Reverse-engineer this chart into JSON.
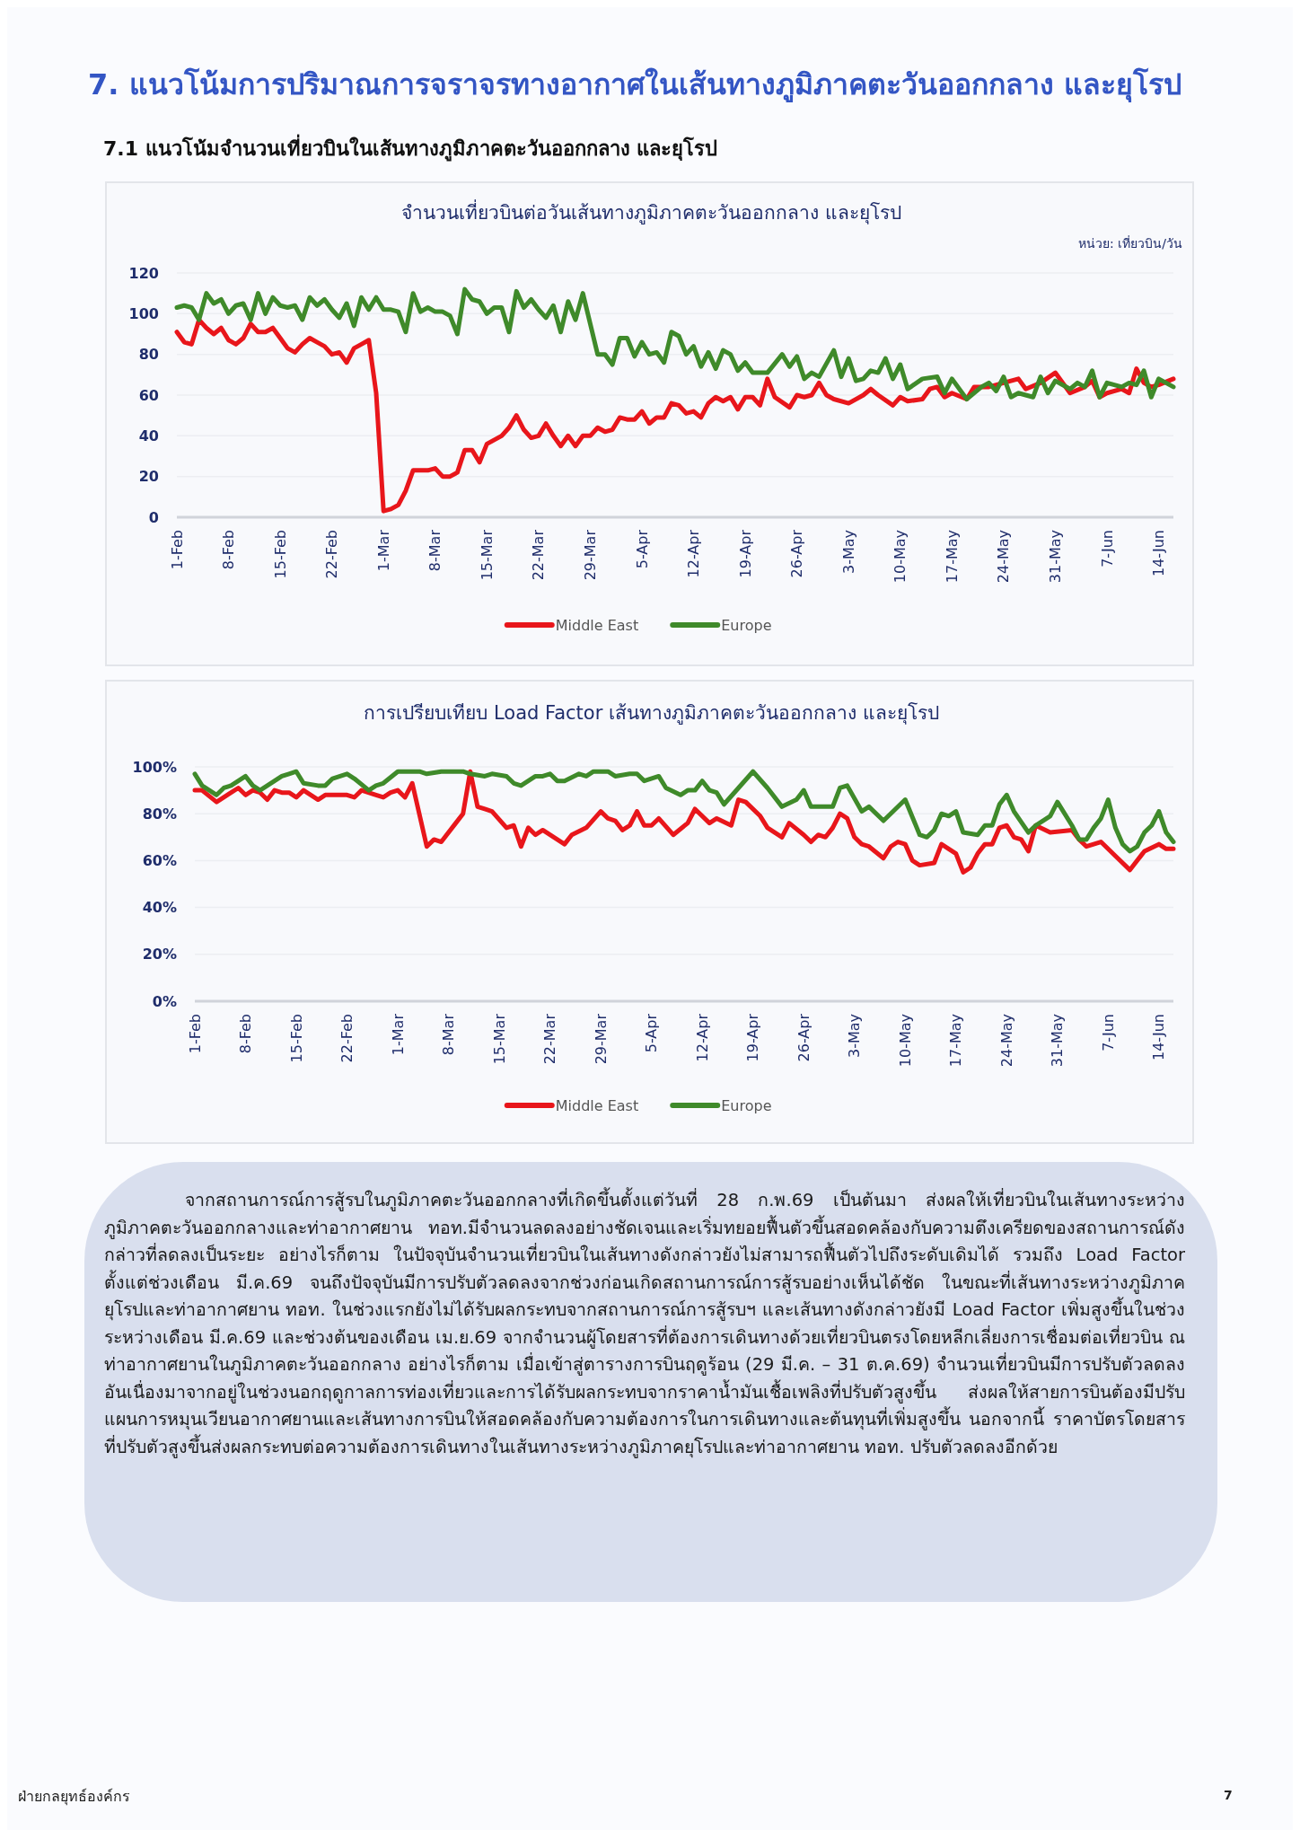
{
  "chart_data": [
    {
      "type": "other",
      "title": "7. แนวโน้มการปริมาณการจราจรทางอากาศในเส้นทางภูมิภาคตะวันออกกลาง และยุโรป",
      "subtitle": "7.1 แนวโน้มจำนวนเที่ยวบินในเส้นทางภูมิภาคตะวันออกกลาง และยุโรป"
    },
    {
      "type": "line",
      "title": "จำนวนเที่ยวบินต่อวันเส้นทางภูมิภาคตะวันออกกลาง และยุโรป",
      "annotations": [
        "หน่วย: เที่ยวบิน/วัน"
      ],
      "xlim": [
        "--02-01",
        "--06-16"
      ],
      "xticks": [
        {
          "value": "--02-01",
          "label": "1-Feb"
        },
        {
          "value": "--02-08",
          "label": "8-Feb"
        },
        {
          "value": "--02-15",
          "label": "15-Feb"
        },
        {
          "value": "--02-22",
          "label": "22-Feb"
        },
        {
          "value": "--03-01",
          "label": "1-Mar"
        },
        {
          "value": "--03-08",
          "label": "8-Mar"
        },
        {
          "value": "--03-15",
          "label": "15-Mar"
        },
        {
          "value": "--03-22",
          "label": "22-Mar"
        },
        {
          "value": "--03-29",
          "label": "29-Mar"
        },
        {
          "value": "--04-05",
          "label": "5-Apr"
        },
        {
          "value": "--04-12",
          "label": "12-Apr"
        },
        {
          "value": "--04-19",
          "label": "19-Apr"
        },
        {
          "value": "--04-26",
          "label": "26-Apr"
        },
        {
          "value": "--05-03",
          "label": "3-May"
        },
        {
          "value": "--05-10",
          "label": "10-May"
        },
        {
          "value": "--05-17",
          "label": "17-May"
        },
        {
          "value": "--05-24",
          "label": "24-May"
        },
        {
          "value": "--05-31",
          "label": "31-May"
        },
        {
          "value": "--06-07",
          "label": "7-Jun"
        },
        {
          "value": "--06-14",
          "label": "14-Jun"
        }
      ],
      "ylim": [
        0,
        120
      ],
      "yticks": [
        0,
        20,
        40,
        60,
        80,
        100,
        120
      ],
      "grid": "y",
      "legend": "bottom",
      "marker": "none",
      "line_style": "solid",
      "series": [
        {
          "name": "Middle East",
          "color": "#e8161b",
          "x": [
            "--02-01",
            "--02-02",
            "--02-03",
            "--02-04",
            "--02-05",
            "--02-06",
            "--02-07",
            "--02-08",
            "--02-09",
            "--02-10",
            "--02-11",
            "--02-12",
            "--02-13",
            "--02-14",
            "--02-15",
            "--02-16",
            "--02-17",
            "--02-18",
            "--02-19",
            "--02-20",
            "--02-21",
            "--02-22",
            "--02-23",
            "--02-24",
            "--02-25",
            "--02-26",
            "--02-27",
            "--02-28",
            "--03-01",
            "--03-02",
            "--03-03",
            "--03-04",
            "--03-05",
            "--03-06",
            "--03-07",
            "--03-08",
            "--03-09",
            "--03-10",
            "--03-11",
            "--03-12",
            "--03-13",
            "--03-14",
            "--03-15",
            "--03-16",
            "--03-17",
            "--03-18",
            "--03-19",
            "--03-20",
            "--03-21",
            "--03-22",
            "--03-23",
            "--03-24",
            "--03-25",
            "--03-26",
            "--03-27",
            "--03-28",
            "--03-29",
            "--03-30",
            "--03-31",
            "--04-01",
            "--04-02",
            "--04-03",
            "--04-04",
            "--04-05",
            "--04-06",
            "--04-07",
            "--04-08",
            "--04-09",
            "--04-10",
            "--04-11",
            "--04-12",
            "--04-13",
            "--04-14",
            "--04-15",
            "--04-16",
            "--04-17",
            "--04-18",
            "--04-19",
            "--04-20",
            "--04-21",
            "--04-22",
            "--04-23",
            "--04-25",
            "--04-26",
            "--04-27",
            "--04-28",
            "--04-29",
            "--04-30",
            "--05-01",
            "--05-03",
            "--05-05",
            "--05-06",
            "--05-07",
            "--05-09",
            "--05-10",
            "--05-11",
            "--05-13",
            "--05-14",
            "--05-15",
            "--05-16",
            "--05-17",
            "--05-19",
            "--05-20",
            "--05-22",
            "--05-24",
            "--05-26",
            "--05-27",
            "--05-29",
            "--05-31",
            "--06-02",
            "--06-04",
            "--06-05",
            "--06-06",
            "--06-07",
            "--06-09",
            "--06-10",
            "--06-11",
            "--06-12",
            "--06-13",
            "--06-14",
            "--06-16"
          ],
          "values": [
            91,
            86,
            85,
            97,
            93,
            90,
            93,
            87,
            85,
            88,
            95,
            91,
            91,
            93,
            88,
            83,
            81,
            85,
            88,
            86,
            84,
            80,
            81,
            76,
            83,
            85,
            87,
            61,
            3,
            4,
            6,
            13,
            23,
            23,
            23,
            24,
            20,
            20,
            22,
            33,
            33,
            27,
            36,
            38,
            40,
            44,
            50,
            43,
            39,
            40,
            46,
            40,
            35,
            40,
            35,
            40,
            40,
            44,
            42,
            43,
            49,
            48,
            48,
            52,
            46,
            49,
            49,
            56,
            55,
            51,
            52,
            49,
            56,
            59,
            57,
            59,
            53,
            59,
            59,
            55,
            68,
            59,
            54,
            60,
            59,
            60,
            66,
            60,
            58,
            56,
            60,
            63,
            60,
            55,
            59,
            57,
            58,
            63,
            64,
            59,
            61,
            58,
            64,
            64,
            66,
            68,
            63,
            66,
            71,
            61,
            64,
            67,
            59,
            61,
            63,
            61,
            73,
            66,
            64,
            65,
            68
          ]
        },
        {
          "name": "Europe",
          "color": "#3f8a2a",
          "x": [
            "--02-01",
            "--02-02",
            "--02-03",
            "--02-04",
            "--02-05",
            "--02-06",
            "--02-07",
            "--02-08",
            "--02-09",
            "--02-10",
            "--02-11",
            "--02-12",
            "--02-13",
            "--02-14",
            "--02-15",
            "--02-16",
            "--02-17",
            "--02-18",
            "--02-19",
            "--02-20",
            "--02-21",
            "--02-22",
            "--02-23",
            "--02-24",
            "--02-25",
            "--02-26",
            "--02-27",
            "--02-28",
            "--03-01",
            "--03-02",
            "--03-03",
            "--03-04",
            "--03-05",
            "--03-06",
            "--03-07",
            "--03-08",
            "--03-09",
            "--03-10",
            "--03-11",
            "--03-12",
            "--03-13",
            "--03-14",
            "--03-15",
            "--03-16",
            "--03-17",
            "--03-18",
            "--03-19",
            "--03-20",
            "--03-21",
            "--03-22",
            "--03-23",
            "--03-24",
            "--03-25",
            "--03-26",
            "--03-27",
            "--03-28",
            "--03-29",
            "--03-30",
            "--03-31",
            "--04-01",
            "--04-02",
            "--04-03",
            "--04-04",
            "--04-05",
            "--04-06",
            "--04-07",
            "--04-08",
            "--04-09",
            "--04-10",
            "--04-11",
            "--04-12",
            "--04-13",
            "--04-14",
            "--04-15",
            "--04-16",
            "--04-17",
            "--04-18",
            "--04-19",
            "--04-20",
            "--04-22",
            "--04-24",
            "--04-25",
            "--04-26",
            "--04-27",
            "--04-28",
            "--04-29",
            "--05-01",
            "--05-02",
            "--05-03",
            "--05-04",
            "--05-05",
            "--05-06",
            "--05-07",
            "--05-08",
            "--05-09",
            "--05-10",
            "--05-11",
            "--05-13",
            "--05-15",
            "--05-16",
            "--05-17",
            "--05-19",
            "--05-21",
            "--05-22",
            "--05-23",
            "--05-24",
            "--05-25",
            "--05-26",
            "--05-28",
            "--05-29",
            "--05-30",
            "--05-31",
            "--06-02",
            "--06-03",
            "--06-04",
            "--06-05",
            "--06-06",
            "--06-07",
            "--06-09",
            "--06-10",
            "--06-11",
            "--06-12",
            "--06-13",
            "--06-14",
            "--06-16"
          ],
          "values": [
            103,
            104,
            103,
            97,
            110,
            105,
            107,
            100,
            104,
            105,
            97,
            110,
            100,
            108,
            104,
            103,
            104,
            97,
            108,
            104,
            107,
            102,
            98,
            105,
            94,
            108,
            102,
            108,
            102,
            102,
            101,
            91,
            110,
            101,
            103,
            101,
            101,
            99,
            90,
            112,
            107,
            106,
            100,
            103,
            103,
            91,
            111,
            103,
            107,
            102,
            98,
            104,
            91,
            106,
            97,
            110,
            95,
            80,
            80,
            75,
            88,
            88,
            79,
            86,
            80,
            81,
            76,
            91,
            89,
            80,
            84,
            74,
            81,
            73,
            82,
            80,
            72,
            76,
            71,
            71,
            80,
            74,
            79,
            68,
            71,
            69,
            82,
            69,
            78,
            67,
            68,
            72,
            71,
            78,
            68,
            75,
            63,
            68,
            69,
            61,
            68,
            58,
            64,
            66,
            62,
            69,
            59,
            61,
            59,
            69,
            61,
            67,
            63,
            66,
            64,
            72,
            59,
            66,
            64,
            66,
            65,
            72,
            59,
            68,
            64
          ]
        }
      ]
    },
    {
      "type": "line",
      "title": "การเปรียบเทียบ Load Factor เส้นทางภูมิภาคตะวันออกกลาง และยุโรป",
      "xlim": [
        "--02-01",
        "--06-16"
      ],
      "xticks": [
        {
          "value": "--02-01",
          "label": "1-Feb"
        },
        {
          "value": "--02-08",
          "label": "8-Feb"
        },
        {
          "value": "--02-15",
          "label": "15-Feb"
        },
        {
          "value": "--02-22",
          "label": "22-Feb"
        },
        {
          "value": "--03-01",
          "label": "1-Mar"
        },
        {
          "value": "--03-08",
          "label": "8-Mar"
        },
        {
          "value": "--03-15",
          "label": "15-Mar"
        },
        {
          "value": "--03-22",
          "label": "22-Mar"
        },
        {
          "value": "--03-29",
          "label": "29-Mar"
        },
        {
          "value": "--04-05",
          "label": "5-Apr"
        },
        {
          "value": "--04-12",
          "label": "12-Apr"
        },
        {
          "value": "--04-19",
          "label": "19-Apr"
        },
        {
          "value": "--04-26",
          "label": "26-Apr"
        },
        {
          "value": "--05-03",
          "label": "3-May"
        },
        {
          "value": "--05-10",
          "label": "10-May"
        },
        {
          "value": "--05-17",
          "label": "17-May"
        },
        {
          "value": "--05-24",
          "label": "24-May"
        },
        {
          "value": "--05-31",
          "label": "31-May"
        },
        {
          "value": "--06-07",
          "label": "7-Jun"
        },
        {
          "value": "--06-14",
          "label": "14-Jun"
        }
      ],
      "ylim": [
        0,
        100
      ],
      "yticks": [
        {
          "value": 0,
          "label": "0%"
        },
        {
          "value": 20,
          "label": "20%"
        },
        {
          "value": 40,
          "label": "40%"
        },
        {
          "value": 60,
          "label": "60%"
        },
        {
          "value": 80,
          "label": "80%"
        },
        {
          "value": 100,
          "label": "100%"
        }
      ],
      "grid": "y",
      "legend": "bottom",
      "marker": "none",
      "line_style": "solid",
      "series": [
        {
          "name": "Middle East",
          "color": "#e8161b",
          "x": [
            "--02-01",
            "--02-02",
            "--02-04",
            "--02-05",
            "--02-06",
            "--02-07",
            "--02-08",
            "--02-09",
            "--02-10",
            "--02-11",
            "--02-12",
            "--02-13",
            "--02-14",
            "--02-15",
            "--02-16",
            "--02-18",
            "--02-19",
            "--02-22",
            "--02-23",
            "--02-24",
            "--02-26",
            "--02-27",
            "--02-28",
            "--03-01",
            "--03-02",
            "--03-03",
            "--03-05",
            "--03-06",
            "--03-07",
            "--03-09",
            "--03-10",
            "--03-11",
            "--03-12",
            "--03-13",
            "--03-14",
            "--03-16",
            "--03-17",
            "--03-18",
            "--03-19",
            "--03-20",
            "--03-21",
            "--03-24",
            "--03-25",
            "--03-27",
            "--03-29",
            "--03-30",
            "--03-31",
            "--04-01",
            "--04-02",
            "--04-03",
            "--04-04",
            "--04-05",
            "--04-06",
            "--04-08",
            "--04-10",
            "--04-11",
            "--04-13",
            "--04-14",
            "--04-16",
            "--04-17",
            "--04-18",
            "--04-20",
            "--04-21",
            "--04-23",
            "--04-24",
            "--04-26",
            "--04-27",
            "--04-28",
            "--04-29",
            "--04-30",
            "--05-01",
            "--05-02",
            "--05-03",
            "--05-04",
            "--05-05",
            "--05-07",
            "--05-08",
            "--05-09",
            "--05-10",
            "--05-11",
            "--05-12",
            "--05-14",
            "--05-15",
            "--05-17",
            "--05-18",
            "--05-19",
            "--05-20",
            "--05-21",
            "--05-22",
            "--05-23",
            "--05-24",
            "--05-25",
            "--05-26",
            "--05-27",
            "--05-28",
            "--05-30",
            "--06-02",
            "--06-03",
            "--06-04",
            "--06-06",
            "--06-08",
            "--06-10",
            "--06-12",
            "--06-14",
            "--06-15",
            "--06-16"
          ],
          "values": [
            90,
            90,
            85,
            87,
            89,
            91,
            88,
            90,
            89,
            86,
            90,
            89,
            89,
            87,
            90,
            86,
            88,
            88,
            87,
            90,
            88,
            87,
            89,
            90,
            87,
            93,
            66,
            69,
            68,
            76,
            80,
            98,
            83,
            82,
            81,
            74,
            75,
            66,
            74,
            71,
            73,
            67,
            71,
            74,
            81,
            78,
            77,
            73,
            75,
            81,
            75,
            75,
            78,
            71,
            76,
            82,
            76,
            78,
            75,
            86,
            85,
            79,
            74,
            70,
            76,
            71,
            68,
            71,
            70,
            74,
            80,
            78,
            70,
            67,
            66,
            61,
            66,
            68,
            67,
            60,
            58,
            59,
            67,
            63,
            55,
            57,
            63,
            67,
            67,
            74,
            75,
            70,
            69,
            64,
            75,
            72,
            73,
            69,
            66,
            68,
            62,
            56,
            64,
            67,
            65,
            65
          ]
        },
        {
          "name": "Europe",
          "color": "#3f8a2a",
          "x": [
            "--02-01",
            "--02-02",
            "--02-03",
            "--02-04",
            "--02-05",
            "--02-06",
            "--02-08",
            "--02-09",
            "--02-10",
            "--02-12",
            "--02-13",
            "--02-14",
            "--02-15",
            "--02-16",
            "--02-18",
            "--02-19",
            "--02-20",
            "--02-22",
            "--02-23",
            "--02-25",
            "--02-26",
            "--02-27",
            "--03-01",
            "--03-04",
            "--03-05",
            "--03-07",
            "--03-10",
            "--03-11",
            "--03-13",
            "--03-14",
            "--03-16",
            "--03-17",
            "--03-18",
            "--03-20",
            "--03-21",
            "--03-22",
            "--03-23",
            "--03-24",
            "--03-26",
            "--03-27",
            "--03-28",
            "--03-30",
            "--03-31",
            "--04-02",
            "--04-03",
            "--04-04",
            "--04-06",
            "--04-07",
            "--04-09",
            "--04-10",
            "--04-11",
            "--04-12",
            "--04-13",
            "--04-14",
            "--04-15",
            "--04-17",
            "--04-19",
            "--04-21",
            "--04-23",
            "--04-25",
            "--04-26",
            "--04-27",
            "--04-30",
            "--05-01",
            "--05-02",
            "--05-04",
            "--05-05",
            "--05-07",
            "--05-10",
            "--05-12",
            "--05-13",
            "--05-14",
            "--05-15",
            "--05-16",
            "--05-17",
            "--05-18",
            "--05-20",
            "--05-21",
            "--05-22",
            "--05-23",
            "--05-24",
            "--05-25",
            "--05-27",
            "--05-28",
            "--05-29",
            "--05-30",
            "--05-31",
            "--06-02",
            "--06-03",
            "--06-04",
            "--06-05",
            "--06-06",
            "--06-07",
            "--06-08",
            "--06-09",
            "--06-10",
            "--06-11",
            "--06-12",
            "--06-13",
            "--06-14",
            "--06-15",
            "--06-16"
          ],
          "values": [
            97,
            92,
            90,
            88,
            91,
            92,
            96,
            92,
            90,
            94,
            96,
            97,
            98,
            93,
            92,
            92,
            95,
            97,
            95,
            90,
            92,
            93,
            98,
            98,
            97,
            98,
            98,
            97,
            96,
            97,
            96,
            93,
            92,
            96,
            96,
            97,
            94,
            94,
            97,
            96,
            98,
            98,
            96,
            97,
            97,
            94,
            96,
            91,
            88,
            90,
            90,
            94,
            90,
            89,
            84,
            91,
            98,
            91,
            83,
            86,
            90,
            83,
            83,
            91,
            92,
            81,
            83,
            77,
            86,
            71,
            70,
            73,
            80,
            79,
            81,
            72,
            71,
            75,
            75,
            84,
            88,
            81,
            72,
            75,
            77,
            79,
            85,
            75,
            69,
            69,
            74,
            78,
            86,
            74,
            67,
            64,
            66,
            72,
            75,
            81,
            72,
            68
          ]
        }
      ]
    },
    {
      "type": "other",
      "annotations": [
        "จากสถานการณ์การสู้รบในภูมิภาคตะวันออกกลางที่เกิดขึ้นตั้งแต่วันที่ 28 ก.พ.69 เป็นต้นมา ส่งผลให้เที่ยวบินในเส้นทางระหว่างภูมิภาคตะวันออกกลางและท่าอากาศยาน ทอท.มีจำนวนลดลงอย่างชัดเจนและเริ่มทยอยฟื้นตัวขึ้นสอดคล้องกับความตึงเครียดของสถานการณ์ดังกล่าวที่ลดลงเป็นระยะ อย่างไรก็ตาม ในปัจจุบันจำนวนเที่ยวบินในเส้นทางดังกล่าวยังไม่สามารถฟื้นตัวไปถึงระดับเดิมได้ รวมถึง Load Factor ตั้งแต่ช่วงเดือน มี.ค.69 จนถึงปัจจุบันมีการปรับตัวลดลงจากช่วงก่อนเกิดสถานการณ์การสู้รบอย่างเห็นได้ชัด ในขณะที่เส้นทางระหว่างภูมิภาคยุโรปและท่าอากาศยาน ทอท. ในช่วงแรกยังไม่ได้รับผลกระทบจากสถานการณ์การสู้รบฯ และเส้นทางดังกล่าวยังมี Load Factor เพิ่มสูงขึ้นในช่วงระหว่างเดือน มี.ค.69 และช่วงต้นของเดือน เม.ย.69 จากจำนวนผู้โดยสารที่ต้องการเดินทางด้วยเที่ยวบินตรงโดยหลีกเลี่ยงการเชื่อมต่อเที่ยวบิน ณ ท่าอากาศยานในภูมิภาคตะวันออกกลาง อย่างไรก็ตาม เมื่อเข้าสู่ตารางการบินฤดูร้อน (29 มี.ค. – 31 ต.ค.69) จำนวนเที่ยวบินมีการปรับตัวลดลงอันเนื่องมาจากอยู่ในช่วงนอกฤดูกาลการท่องเที่ยวและการได้รับผลกระทบจากราคาน้ำมันเชื้อเพลิงที่ปรับตัวสูงขึ้น ส่งผลให้สายการบินต้องมีปรับแผนการหมุนเวียนอากาศยานและเส้นทางการบินให้สอดคล้องกับความต้องการในการเดินทางและต้นทุนที่เพิ่มสูงขึ้น นอกจากนี้ ราคาบัตรโดยสารที่ปรับตัวสูงขึ้นส่งผลกระทบต่อความต้องการเดินทางในเส้นทางระหว่างภูมิภาคยุโรปและท่าอากาศยาน ทอท. ปรับตัวลดลงอีกด้วย",
        "ฝ่ายกลยุทธ์องค์กร",
        "7"
      ]
    }
  ]
}
